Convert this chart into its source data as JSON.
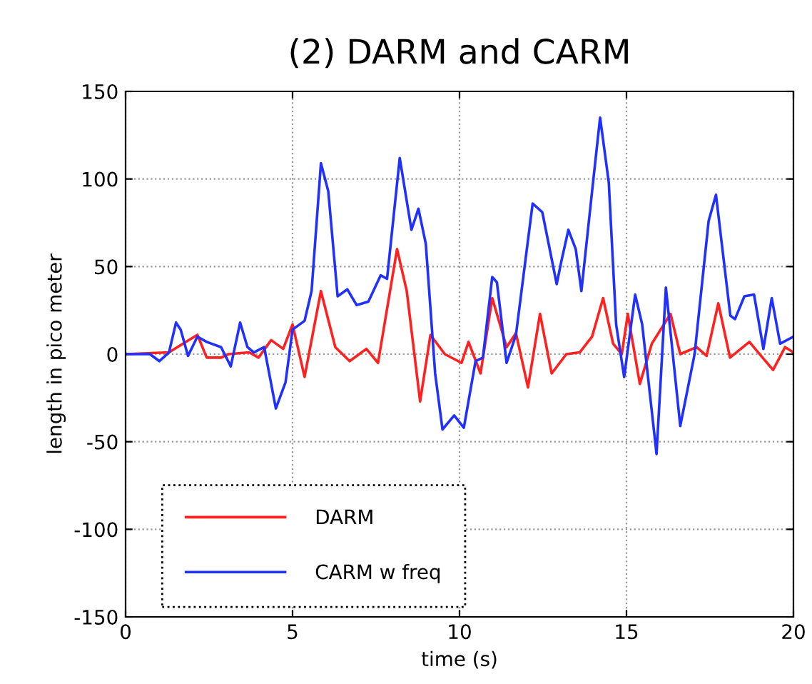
{
  "chart_data": {
    "type": "line",
    "title": "(2) DARM and CARM",
    "xlabel": "time (s)",
    "ylabel": "length in pico meter",
    "xlim": [
      0,
      20
    ],
    "ylim": [
      -150,
      150
    ],
    "xticks": [
      0,
      5,
      10,
      15,
      20
    ],
    "yticks": [
      -150,
      -100,
      -50,
      0,
      50,
      100,
      150
    ],
    "grid": true,
    "legend": "bottom left",
    "series": [
      {
        "name": "DARM",
        "color": "#ff2020",
        "x": [
          0,
          1.3,
          2.15,
          2.43,
          2.86,
          3.08,
          3.7,
          3.98,
          4.36,
          4.72,
          5.0,
          5.36,
          5.85,
          6.28,
          6.71,
          7.21,
          7.56,
          8.13,
          8.42,
          8.82,
          9.13,
          9.56,
          10.06,
          10.27,
          10.63,
          10.98,
          11.41,
          11.69,
          12.05,
          12.41,
          12.76,
          13.2,
          13.6,
          13.97,
          14.3,
          14.6,
          14.86,
          15.04,
          15.4,
          15.76,
          16.32,
          16.61,
          17.1,
          17.4,
          17.75,
          18.1,
          18.68,
          19.03,
          19.39,
          19.75,
          20
        ],
        "values": [
          0,
          1,
          11,
          -2,
          -2,
          0,
          1,
          -2,
          8,
          3,
          17,
          -13,
          36,
          4,
          -4,
          3,
          -5,
          60,
          36,
          -27,
          11,
          0,
          -5,
          7,
          -11,
          32,
          4,
          12,
          -19,
          23,
          -11,
          0,
          1,
          10,
          32,
          6,
          0,
          23,
          -17,
          6,
          23,
          0,
          4,
          -1,
          29,
          -2,
          7,
          -1,
          -9,
          4,
          1
        ]
      },
      {
        "name": "CARM w freq",
        "color": "#2030ff",
        "x": [
          0,
          0.73,
          1.01,
          1.3,
          1.51,
          1.65,
          1.87,
          2.15,
          2.43,
          2.86,
          3.15,
          3.43,
          3.65,
          3.84,
          4.15,
          4.5,
          4.79,
          5.0,
          5.36,
          5.57,
          5.85,
          6.07,
          6.35,
          6.64,
          6.92,
          7.27,
          7.64,
          7.83,
          8.21,
          8.56,
          8.77,
          8.99,
          9.27,
          9.49,
          9.84,
          10.13,
          10.48,
          10.7,
          10.98,
          11.12,
          11.41,
          11.69,
          12.19,
          12.48,
          12.91,
          13.05,
          13.26,
          13.48,
          13.65,
          13.97,
          14.21,
          14.47,
          14.69,
          14.93,
          15.26,
          15.47,
          15.9,
          16.18,
          16.61,
          17.04,
          17.46,
          17.68,
          18.11,
          18.25,
          18.53,
          18.82,
          19.1,
          19.35,
          19.6,
          20
        ],
        "values": [
          0,
          0,
          -4,
          1,
          18,
          14,
          -1,
          10,
          7,
          4,
          -7,
          18,
          4,
          1,
          4,
          -31,
          -16,
          14,
          19,
          36,
          109,
          93,
          33,
          37,
          28,
          30,
          45,
          43,
          112,
          71,
          83,
          63,
          -11,
          -43,
          -35,
          -42,
          -4,
          -2,
          44,
          41,
          -5,
          11,
          86,
          81,
          40,
          53,
          71,
          60,
          36,
          93,
          135,
          98,
          17,
          -13,
          34,
          17,
          -57,
          38,
          -41,
          0,
          76,
          91,
          22,
          20,
          33,
          34,
          3,
          32,
          6,
          10
        ]
      }
    ]
  }
}
